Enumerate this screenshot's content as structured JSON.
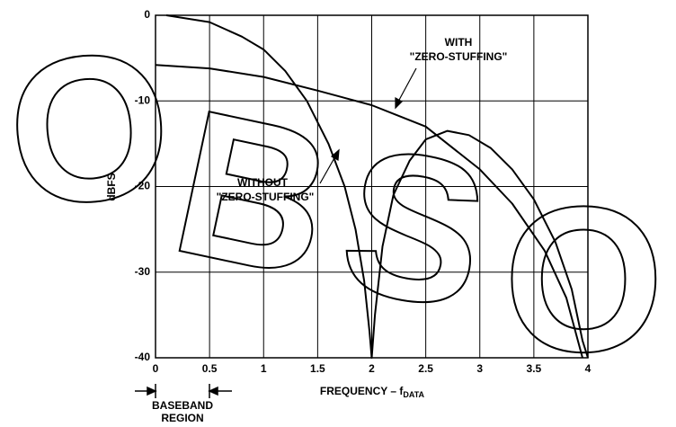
{
  "chart_data": {
    "type": "line",
    "y_label": "dBFS",
    "x_label": "FREQUENCY – f",
    "x_label_sub": "DATA",
    "xlim": [
      0,
      4
    ],
    "ylim": [
      -40,
      0
    ],
    "xticks": [
      0,
      0.5,
      1,
      1.5,
      2,
      2.5,
      3,
      3.5,
      4
    ],
    "yticks": [
      0,
      -10,
      -20,
      -30,
      -40
    ],
    "grid": true,
    "series": [
      {
        "color": "#000000",
        "x": [
          0.1,
          0.5,
          0.8,
          1,
          1.2,
          1.4,
          1.6,
          1.75,
          1.85,
          1.93,
          1.98,
          2,
          2.03,
          2.1,
          2.2,
          2.35,
          2.5,
          2.7,
          2.9,
          3.1,
          3.3,
          3.5,
          3.7,
          3.85,
          3.95,
          4
        ],
        "values": [
          0,
          -0.8,
          -2.5,
          -4,
          -6.5,
          -10,
          -15,
          -20,
          -25,
          -31,
          -37,
          -40,
          -35,
          -27,
          -21,
          -17,
          -14.5,
          -13.5,
          -14,
          -15.5,
          -18,
          -21.5,
          -26.5,
          -32,
          -38,
          -40
        ]
      },
      {
        "color": "#000000",
        "x": [
          0,
          0.5,
          1,
          1.5,
          2,
          2.5,
          3,
          3.3,
          3.6,
          3.8,
          3.95
        ],
        "values": [
          -5.8,
          -6.2,
          -7.2,
          -8.8,
          -10.5,
          -13,
          -18,
          -22,
          -27.5,
          -33,
          -40
        ]
      }
    ],
    "annotations": [
      {
        "lines": [
          "WITH",
          "\"ZERO-STUFFING\""
        ]
      },
      {
        "lines": [
          "WITHOUT",
          "\"ZERO-STUFFING\""
        ]
      }
    ],
    "region_label": [
      "BASEBAND",
      "REGION"
    ],
    "watermark": [
      "O",
      "B",
      "S",
      "O"
    ]
  }
}
